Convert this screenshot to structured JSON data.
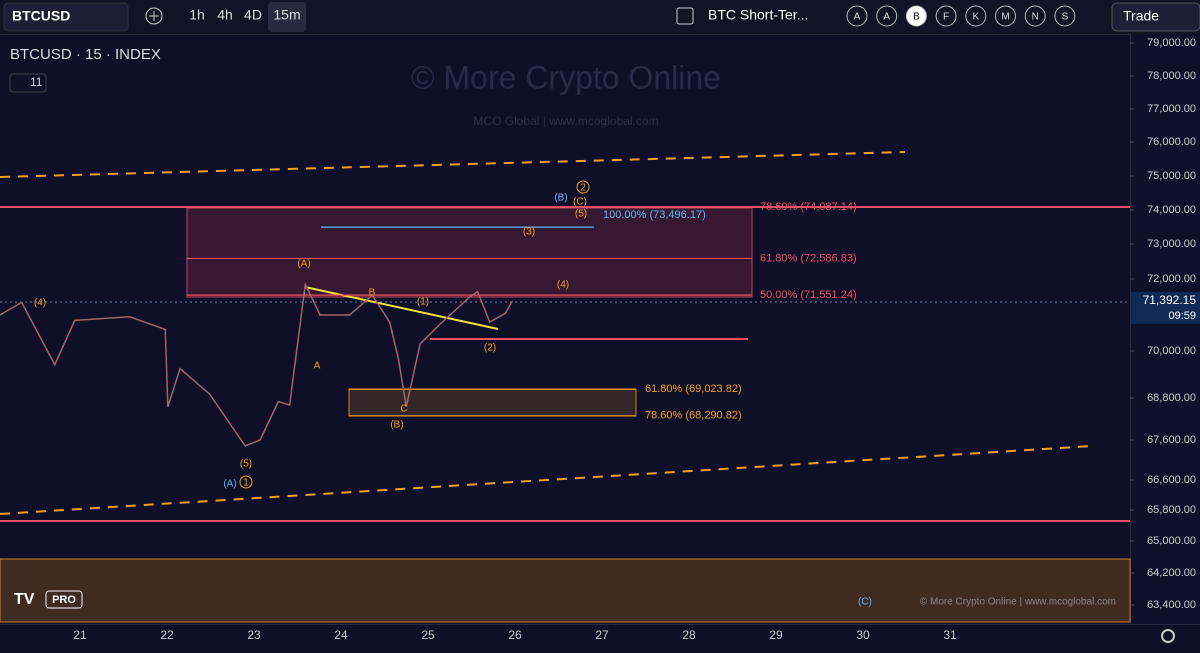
{
  "toolbar": {
    "symbol": "BTCUSD",
    "intervals": [
      "1h",
      "4h",
      "4D",
      "15m"
    ],
    "layout_name": "BTC Short-Ter...",
    "alerts": [
      "A",
      "A",
      "B",
      "F",
      "K",
      "M",
      "N",
      "S"
    ],
    "trade": "Trade"
  },
  "legend": {
    "title": "BTCUSD · 15 · INDEX",
    "count": "11"
  },
  "watermark": {
    "title": "© More Crypto Online",
    "subtitle": "MCO Global  |  www.mcoglobal.com"
  },
  "footer": {
    "logo": "PRO",
    "credit": "© More Crypto Online  |  www.mcoglobal.com"
  },
  "price_axis": {
    "ticks": [
      {
        "value": 79000,
        "label": "79,000.00"
      },
      {
        "value": 78000,
        "label": "78,000.00"
      },
      {
        "value": 77000,
        "label": "77,000.00"
      },
      {
        "value": 76000,
        "label": "76,000.00"
      },
      {
        "value": 75000,
        "label": "75,000.00"
      },
      {
        "value": 74000,
        "label": "74,000.00"
      },
      {
        "value": 73000,
        "label": "73,000.00"
      },
      {
        "value": 72000,
        "label": "72,000.00"
      },
      {
        "value": 70000,
        "label": "70,000.00"
      },
      {
        "value": 68800,
        "label": "68,800.00"
      },
      {
        "value": 67600,
        "label": "67,600.00"
      },
      {
        "value": 66600,
        "label": "66,600.00"
      },
      {
        "value": 65800,
        "label": "65,800.00"
      },
      {
        "value": 65000,
        "label": "65,000.00"
      },
      {
        "value": 64200,
        "label": "64,200.00"
      },
      {
        "value": 63400,
        "label": "63,400.00"
      }
    ],
    "current": {
      "value": 71392.15,
      "label": "71,392.15",
      "timer": "09:59"
    }
  },
  "time_axis": {
    "labels": [
      "21",
      "22",
      "23",
      "24",
      "25",
      "26",
      "27",
      "28",
      "29",
      "30",
      "31"
    ]
  },
  "levels": [
    {
      "label": "78.60% (74,087.14)",
      "price": 74087.14,
      "color": "#f05060"
    },
    {
      "label": "100.00% (73,496.17)",
      "price": 73496.17,
      "color": "#5ab8f0"
    },
    {
      "label": "61.80% (72,586.83)",
      "price": 72586.83,
      "color": "#f05060"
    },
    {
      "label": "50.00% (71,551.24)",
      "price": 71551.24,
      "color": "#f05060"
    },
    {
      "label": "61.80% (69,023.82)",
      "price": 69023.82,
      "color": "#f0a020"
    },
    {
      "label": "78.60% (68,290.82)",
      "price": 68290.82,
      "color": "#f0a020"
    }
  ],
  "wave_labels": [
    "(4)",
    "(A)",
    "A",
    "B",
    "C",
    "(B)",
    "(1)",
    "(2)",
    "(3)",
    "(4)",
    "(5)",
    "(C)",
    "2",
    "(B)",
    "(5)",
    "(A)",
    "1",
    "(C)"
  ],
  "price_path": {
    "x": [
      20.08,
      20.33,
      20.71,
      20.94,
      21.57,
      21.98,
      22.01,
      22.15,
      22.49,
      22.9,
      23.07,
      23.28,
      23.41,
      23.49,
      23.59,
      23.76,
      24.1,
      24.36,
      24.56,
      24.66,
      24.75,
      24.91,
      25.14,
      25.48,
      25.57,
      25.71,
      25.89,
      25.97
    ],
    "values": [
      71000,
      71350,
      69650,
      70850,
      70950,
      70600,
      68550,
      69550,
      68900,
      67450,
      67600,
      68700,
      68600,
      70000,
      71850,
      71000,
      71000,
      71550,
      70800,
      69800,
      68550,
      70200,
      70750,
      71500,
      71650,
      70800,
      71050,
      71392
    ]
  }
}
